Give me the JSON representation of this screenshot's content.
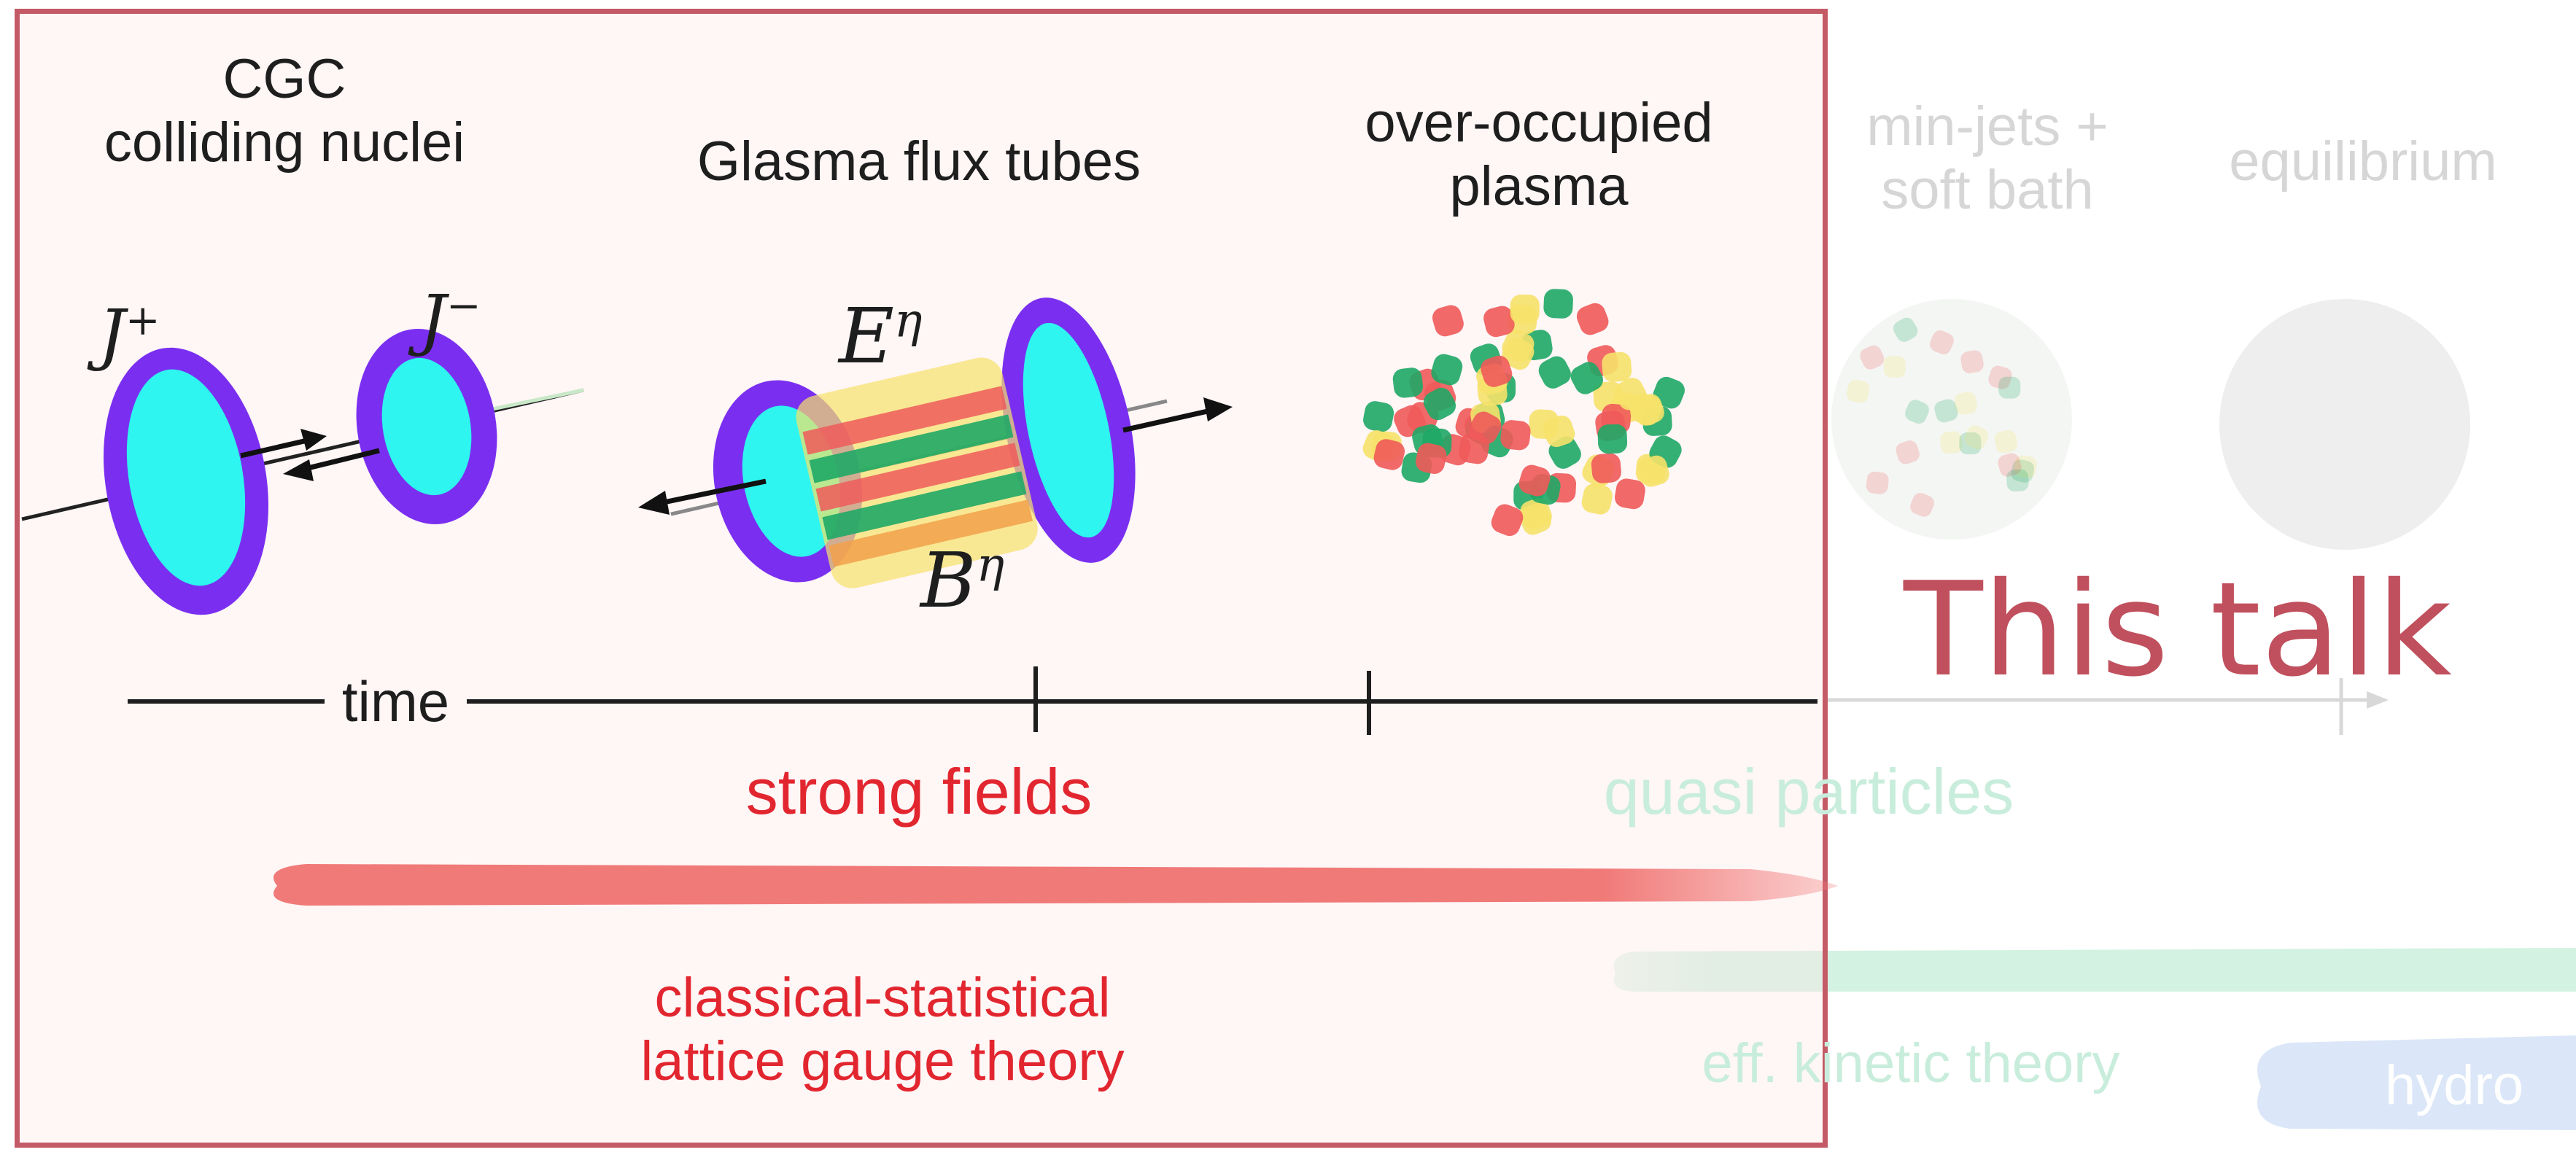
{
  "stages": {
    "cgc_line1": "CGC",
    "cgc_line2": "colliding nuclei",
    "glasma": "Glasma flux tubes",
    "over_line1": "over-occupied",
    "over_line2": "plasma",
    "minijets_line1": "min-jets +",
    "minijets_line2": "soft bath",
    "equilibrium": "equilibrium"
  },
  "symbols": {
    "j_plus": "J",
    "j_plus_sup": "+",
    "j_minus": "J",
    "j_minus_sup": "−",
    "e_eta": "E",
    "e_eta_sup": "η",
    "b_eta": "B",
    "b_eta_sup": "η"
  },
  "axis": {
    "time": "time"
  },
  "regimes": {
    "strong_fields": "strong fields",
    "quasi_particles": "quasi particles",
    "classical_line1": "classical-statistical",
    "classical_line2": "lattice gauge theory",
    "kinetic": "eff. kinetic theory",
    "hydro": "hydro"
  },
  "highlight": {
    "label": "This talk"
  },
  "colors": {
    "frame": "#c45a66",
    "strong_fields_band": "#f07a78",
    "kinetic_band": "#d3f2e2",
    "hydro_band": "#d9e6f7",
    "nucleus_cyan": "#2ef5ef",
    "nucleus_purple": "#7a2ff0",
    "plasma_red": "#ef5a5a",
    "plasma_green": "#1fa866",
    "plasma_yellow": "#f6e26a"
  }
}
